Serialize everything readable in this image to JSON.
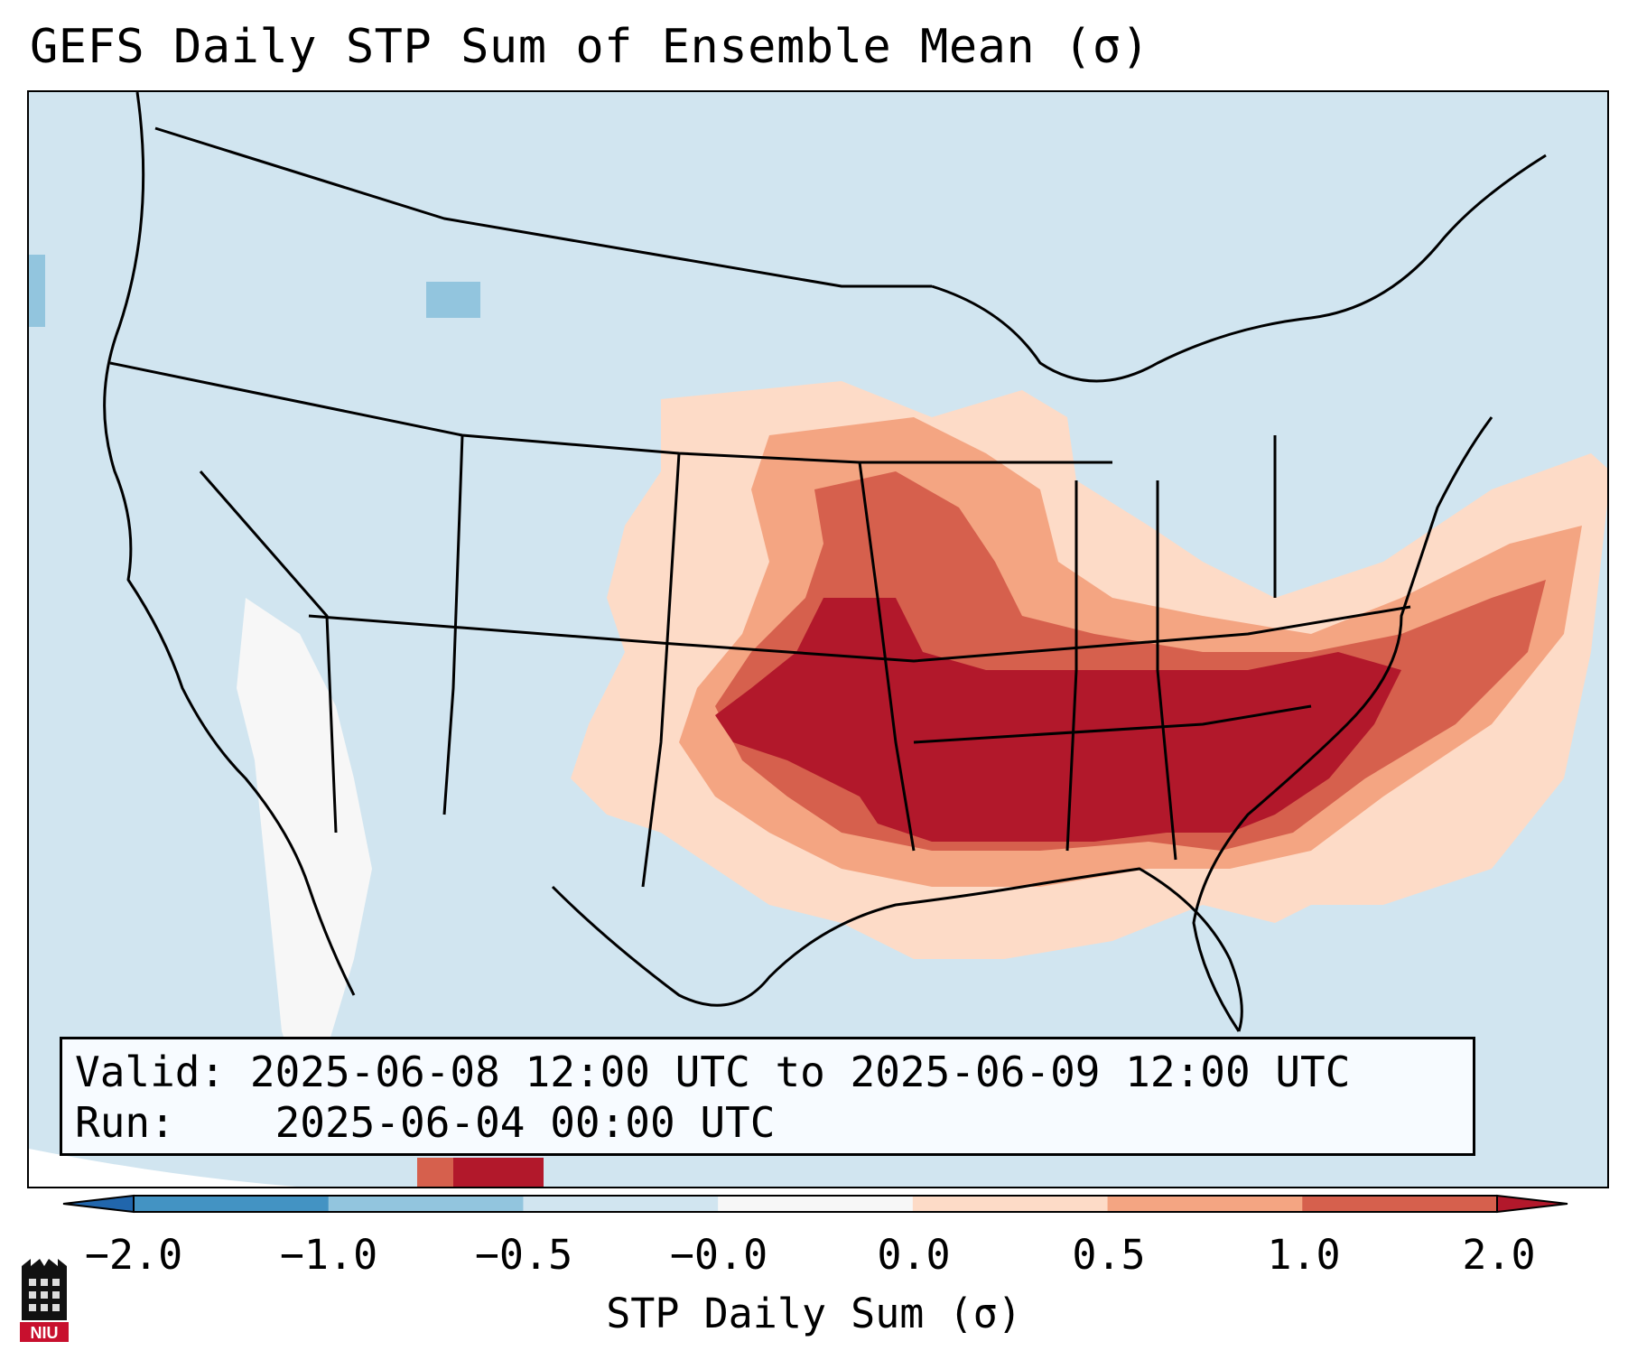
{
  "title": "GEFS Daily STP Sum of Ensemble Mean (σ)",
  "info": {
    "valid_label": "Valid:",
    "valid_value": "2025-06-08 12:00 UTC to 2025-06-09 12:00 UTC",
    "run_label": "Run:",
    "run_value": "2025-06-04 00:00 UTC"
  },
  "colorbar": {
    "label": "STP Daily Sum (σ)",
    "ticks": [
      "−2.0",
      "−1.0",
      "−0.5",
      "−0.0",
      "0.0",
      "0.5",
      "1.0",
      "2.0"
    ],
    "colors": [
      "#2166ac",
      "#4393c3",
      "#92c5de",
      "#d1e5f0",
      "#f7f7f7",
      "#fddbc7",
      "#f4a582",
      "#d6604d",
      "#b2182b"
    ]
  },
  "legend_colors": {
    "ocean": "#d1e5f0",
    "high": "#b2182b",
    "mid_high": "#d6604d",
    "mid": "#f4a582",
    "low": "#fddbc7",
    "neutral": "#f7f7f7",
    "neg_low": "#92c5de"
  },
  "logo": {
    "text": "NIU"
  }
}
